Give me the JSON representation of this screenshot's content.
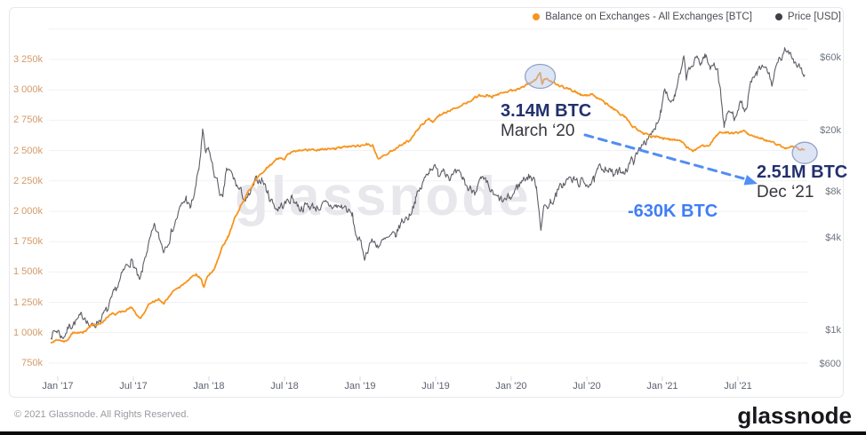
{
  "legend": {
    "items": [
      {
        "label": "Balance on Exchanges - All Exchanges [BTC]",
        "color": "#f7941d"
      },
      {
        "label": "Price [USD]",
        "color": "#3f3f48"
      }
    ]
  },
  "watermark": {
    "text": "glassnode"
  },
  "annotations": {
    "peak": {
      "value": "3.14M BTC",
      "date": "March ‘20"
    },
    "end": {
      "value": "2.51M BTC",
      "date": "Dec ‘21"
    },
    "delta": {
      "value": "-630K BTC"
    },
    "arrow_color": "#4285f4",
    "highlight_value_color": "#23306e"
  },
  "footer": {
    "copyright": "© 2021 Glassnode. All Rights Reserved.",
    "brand": "glassnode"
  },
  "chart_data": {
    "type": "line",
    "title": "",
    "x_axis": {
      "unit": "months since Jan 2017",
      "ticks": [
        {
          "m": 0,
          "label": "Jan '17"
        },
        {
          "m": 6,
          "label": "Jul '17"
        },
        {
          "m": 12,
          "label": "Jan '18"
        },
        {
          "m": 18,
          "label": "Jul '18"
        },
        {
          "m": 24,
          "label": "Jan '19"
        },
        {
          "m": 30,
          "label": "Jul '19"
        },
        {
          "m": 36,
          "label": "Jan '20"
        },
        {
          "m": 42,
          "label": "Jul '20"
        },
        {
          "m": 48,
          "label": "Jan '21"
        },
        {
          "m": 54,
          "label": "Jul '21"
        }
      ]
    },
    "y_left": {
      "title": "Balance on Exchanges [BTC]",
      "scale": "linear",
      "unit": "thousand BTC",
      "min": 750,
      "max": 3500,
      "ticks": [
        {
          "v": 3250,
          "label": "3 250k"
        },
        {
          "v": 3000,
          "label": "3 000k"
        },
        {
          "v": 2750,
          "label": "2 750k"
        },
        {
          "v": 2500,
          "label": "2 500k"
        },
        {
          "v": 2250,
          "label": "2 250k"
        },
        {
          "v": 2000,
          "label": "2 000k"
        },
        {
          "v": 1750,
          "label": "1 750k"
        },
        {
          "v": 1500,
          "label": "1 500k"
        },
        {
          "v": 1250,
          "label": "1 250k"
        },
        {
          "v": 1000,
          "label": "1 000k"
        },
        {
          "v": 750,
          "label": "750k"
        }
      ],
      "extra_gridline_values": [
        3500
      ]
    },
    "y_right": {
      "title": "Price [USD]",
      "scale": "log",
      "unit": "USD",
      "ticks": [
        {
          "v": 60000,
          "label": "$60k"
        },
        {
          "v": 20000,
          "label": "$20k"
        },
        {
          "v": 8000,
          "label": "$8k"
        },
        {
          "v": 4000,
          "label": "$4k"
        },
        {
          "v": 1000,
          "label": "$1k"
        },
        {
          "v": 600,
          "label": "$600"
        }
      ]
    },
    "series": [
      {
        "name": "Price [USD]",
        "axis": "right",
        "color": "#5d5d66",
        "width": 1.1,
        "points": [
          [
            -0.55,
            940
          ],
          [
            0,
            1000
          ],
          [
            0.35,
            890
          ],
          [
            1,
            1080
          ],
          [
            1.8,
            1190
          ],
          [
            2.2,
            1250
          ],
          [
            2.6,
            1030
          ],
          [
            3.2,
            1150
          ],
          [
            4,
            1350
          ],
          [
            4.7,
            1900
          ],
          [
            5.4,
            2550
          ],
          [
            5.8,
            2880
          ],
          [
            6.1,
            2550
          ],
          [
            6.5,
            2000
          ],
          [
            7.1,
            3400
          ],
          [
            7.7,
            4650
          ],
          [
            8.4,
            3350
          ],
          [
            9,
            4350
          ],
          [
            9.7,
            6100
          ],
          [
            10.2,
            7300
          ],
          [
            10.5,
            6100
          ],
          [
            10.9,
            8100
          ],
          [
            11.2,
            11300
          ],
          [
            11.5,
            19100
          ],
          [
            11.75,
            13900
          ],
          [
            12,
            15100
          ],
          [
            12.3,
            11500
          ],
          [
            13.1,
            6900
          ],
          [
            13.4,
            11300
          ],
          [
            13.8,
            10300
          ],
          [
            14.4,
            8200
          ],
          [
            15,
            6900
          ],
          [
            15.7,
            9200
          ],
          [
            16.2,
            9800
          ],
          [
            16.8,
            7400
          ],
          [
            17.4,
            6200
          ],
          [
            18.1,
            6700
          ],
          [
            18.6,
            7400
          ],
          [
            19.2,
            6300
          ],
          [
            19.8,
            6500
          ],
          [
            20.5,
            6350
          ],
          [
            21.3,
            6500
          ],
          [
            22.1,
            6400
          ],
          [
            22.8,
            6350
          ],
          [
            23.4,
            5500
          ],
          [
            23.6,
            4400
          ],
          [
            24,
            3700
          ],
          [
            24.4,
            3000
          ],
          [
            24.8,
            3800
          ],
          [
            25.5,
            3600
          ],
          [
            26.2,
            3900
          ],
          [
            26.8,
            4100
          ],
          [
            27.3,
            5100
          ],
          [
            27.9,
            5600
          ],
          [
            28.4,
            7200
          ],
          [
            28.9,
            8600
          ],
          [
            29.4,
            11000
          ],
          [
            29.8,
            12000
          ],
          [
            30.2,
            10300
          ],
          [
            30.6,
            11700
          ],
          [
            31.2,
            9900
          ],
          [
            31.7,
            10300
          ],
          [
            32.2,
            9700
          ],
          [
            32.6,
            8300
          ],
          [
            33.1,
            8300
          ],
          [
            33.6,
            9400
          ],
          [
            34.1,
            8800
          ],
          [
            34.7,
            7300
          ],
          [
            35.4,
            6900
          ],
          [
            36,
            7300
          ],
          [
            36.5,
            8700
          ],
          [
            37.1,
            9900
          ],
          [
            37.5,
            10200
          ],
          [
            38,
            8800
          ],
          [
            38.35,
            4850
          ],
          [
            38.6,
            6200
          ],
          [
            39.1,
            6800
          ],
          [
            39.6,
            7600
          ],
          [
            40,
            8800
          ],
          [
            40.5,
            9600
          ],
          [
            41,
            9500
          ],
          [
            41.5,
            9100
          ],
          [
            42.1,
            9200
          ],
          [
            42.6,
            9300
          ],
          [
            42.9,
            11000
          ],
          [
            43.5,
            11900
          ],
          [
            44.1,
            10300
          ],
          [
            44.6,
            10700
          ],
          [
            45.2,
            11500
          ],
          [
            45.7,
            13000
          ],
          [
            46,
            13800
          ],
          [
            46.5,
            17500
          ],
          [
            46.9,
            17200
          ],
          [
            47.3,
            19500
          ],
          [
            47.9,
            28000
          ],
          [
            48.2,
            40500
          ],
          [
            48.6,
            31000
          ],
          [
            49,
            34000
          ],
          [
            49.5,
            49000
          ],
          [
            49.7,
            57000
          ],
          [
            49.9,
            45000
          ],
          [
            50.4,
            54000
          ],
          [
            50.8,
            59000
          ],
          [
            51.1,
            56000
          ],
          [
            51.4,
            63200
          ],
          [
            51.8,
            50000
          ],
          [
            52.1,
            57000
          ],
          [
            52.4,
            50000
          ],
          [
            52.6,
            36000
          ],
          [
            52.9,
            21800
          ],
          [
            53.3,
            27000
          ],
          [
            53.7,
            24500
          ],
          [
            54.1,
            31000
          ],
          [
            54.6,
            26500
          ],
          [
            55,
            39500
          ],
          [
            55.5,
            47000
          ],
          [
            56.2,
            52500
          ],
          [
            56.7,
            41000
          ],
          [
            57.2,
            55000
          ],
          [
            57.7,
            64500
          ],
          [
            58.1,
            67000
          ],
          [
            58.5,
            57500
          ],
          [
            58.9,
            53500
          ],
          [
            59.1,
            49500
          ],
          [
            59.3,
            46500
          ]
        ]
      },
      {
        "name": "Balance on Exchanges - All Exchanges [BTC]",
        "axis": "left",
        "color": "#f7941d",
        "width": 1.8,
        "points": [
          [
            -0.55,
            915
          ],
          [
            0,
            945
          ],
          [
            0.7,
            925
          ],
          [
            1.2,
            1005
          ],
          [
            2,
            995
          ],
          [
            2.6,
            1055
          ],
          [
            3.5,
            1085
          ],
          [
            4.3,
            1150
          ],
          [
            5,
            1165
          ],
          [
            5.8,
            1210
          ],
          [
            6.2,
            1160
          ],
          [
            6.6,
            1125
          ],
          [
            7.2,
            1225
          ],
          [
            8,
            1280
          ],
          [
            8.4,
            1240
          ],
          [
            9,
            1325
          ],
          [
            9.6,
            1365
          ],
          [
            10,
            1400
          ],
          [
            10.5,
            1440
          ],
          [
            11,
            1485
          ],
          [
            11.35,
            1445
          ],
          [
            11.6,
            1370
          ],
          [
            11.85,
            1460
          ],
          [
            12.1,
            1490
          ],
          [
            12.4,
            1525
          ],
          [
            13,
            1685
          ],
          [
            13.5,
            1790
          ],
          [
            14,
            1925
          ],
          [
            14.5,
            2040
          ],
          [
            15,
            2135
          ],
          [
            15.6,
            2245
          ],
          [
            16,
            2305
          ],
          [
            16.5,
            2345
          ],
          [
            17,
            2395
          ],
          [
            17.5,
            2440
          ],
          [
            18,
            2435
          ],
          [
            18.6,
            2490
          ],
          [
            19.2,
            2500
          ],
          [
            20,
            2508
          ],
          [
            21,
            2512
          ],
          [
            22,
            2518
          ],
          [
            23,
            2528
          ],
          [
            24,
            2535
          ],
          [
            24.5,
            2555
          ],
          [
            25,
            2540
          ],
          [
            25.4,
            2430
          ],
          [
            26,
            2465
          ],
          [
            26.8,
            2515
          ],
          [
            27.5,
            2565
          ],
          [
            28,
            2585
          ],
          [
            28.6,
            2675
          ],
          [
            29,
            2720
          ],
          [
            29.4,
            2770
          ],
          [
            29.8,
            2735
          ],
          [
            30.3,
            2790
          ],
          [
            31,
            2825
          ],
          [
            31.6,
            2855
          ],
          [
            32,
            2870
          ],
          [
            32.5,
            2895
          ],
          [
            33,
            2930
          ],
          [
            33.5,
            2950
          ],
          [
            34,
            2958
          ],
          [
            34.5,
            2942
          ],
          [
            35,
            2962
          ],
          [
            35.5,
            2978
          ],
          [
            36,
            2992
          ],
          [
            36.5,
            3008
          ],
          [
            37,
            3028
          ],
          [
            37.5,
            3058
          ],
          [
            38,
            3088
          ],
          [
            38.3,
            3140
          ],
          [
            38.45,
            3055
          ],
          [
            38.65,
            3098
          ],
          [
            39,
            3078
          ],
          [
            39.5,
            3052
          ],
          [
            40,
            3028
          ],
          [
            40.5,
            3008
          ],
          [
            41,
            2988
          ],
          [
            41.5,
            2958
          ],
          [
            42,
            2952
          ],
          [
            42.3,
            2972
          ],
          [
            42.7,
            2942
          ],
          [
            43,
            2918
          ],
          [
            43.5,
            2888
          ],
          [
            44,
            2852
          ],
          [
            44.5,
            2818
          ],
          [
            45,
            2778
          ],
          [
            45.5,
            2718
          ],
          [
            46,
            2668
          ],
          [
            46.5,
            2638
          ],
          [
            47,
            2622
          ],
          [
            47.5,
            2612
          ],
          [
            48,
            2602
          ],
          [
            48.5,
            2598
          ],
          [
            49,
            2588
          ],
          [
            49.5,
            2568
          ],
          [
            50,
            2522
          ],
          [
            50.4,
            2492
          ],
          [
            50.8,
            2518
          ],
          [
            51.3,
            2538
          ],
          [
            51.8,
            2552
          ],
          [
            52.2,
            2608
          ],
          [
            52.6,
            2652
          ],
          [
            53,
            2648
          ],
          [
            53.5,
            2642
          ],
          [
            54,
            2652
          ],
          [
            54.4,
            2662
          ],
          [
            54.8,
            2638
          ],
          [
            55.3,
            2618
          ],
          [
            55.8,
            2602
          ],
          [
            56.3,
            2582
          ],
          [
            56.8,
            2562
          ],
          [
            57.3,
            2538
          ],
          [
            57.8,
            2518
          ],
          [
            58.2,
            2532
          ],
          [
            58.6,
            2522
          ],
          [
            59,
            2514
          ],
          [
            59.3,
            2510
          ]
        ]
      }
    ],
    "highlights": [
      {
        "type": "circle",
        "x_month": 38.3,
        "y_value_kbtc": 3140,
        "series": "balance",
        "note": "3.14M BTC March '20"
      },
      {
        "type": "circle",
        "x_month": 59.3,
        "y_value_kbtc": 2510,
        "series": "balance",
        "note": "2.51M BTC Dec '21"
      },
      {
        "type": "arrow",
        "note": "-630K BTC decline from March '20 to Dec '21"
      }
    ],
    "legend_position": "top-right",
    "grid": "horizontal-only"
  }
}
